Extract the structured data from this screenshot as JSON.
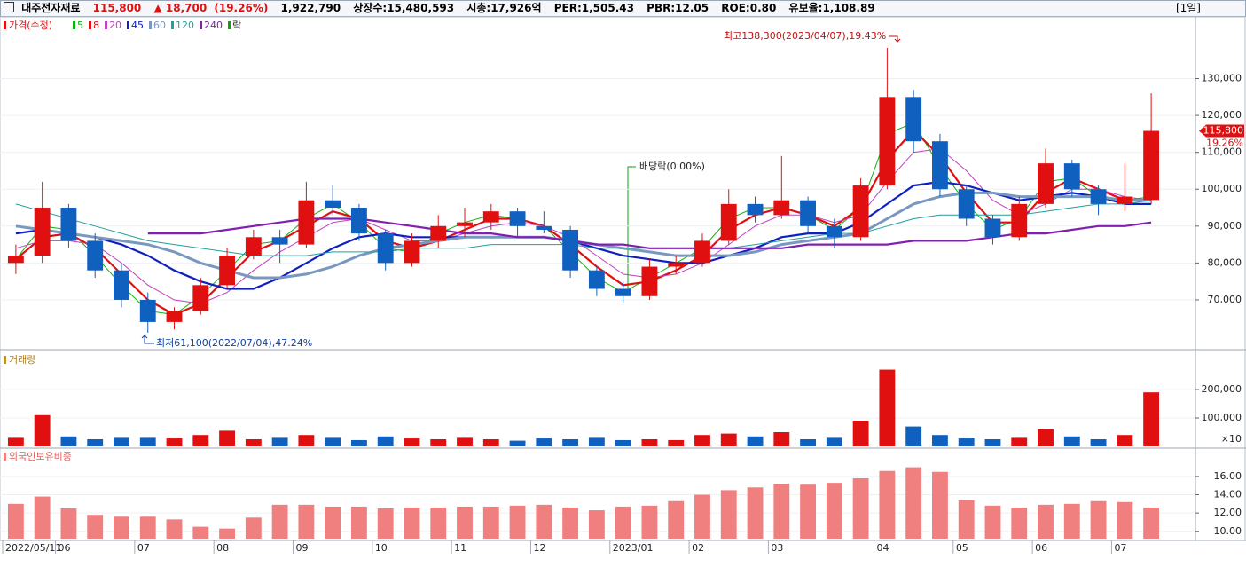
{
  "header": {
    "name": "대주전자재료",
    "price": "115,800",
    "change": "▲ 18,700",
    "change_pct": "(19.26%)",
    "volume": "1,922,790",
    "listed": "상장수:15,480,593",
    "market_cap": "시총:17,926억",
    "per": "PER:1,505.43",
    "pbr": "PBR:12.05",
    "roe": "ROE:0.80",
    "reserve": "유보율:1,108.89",
    "period": "[1일]"
  },
  "chart_data": [
    {
      "type": "candlestick",
      "name": "가격(수정)",
      "up_color": "#e01010",
      "down_color": "#1060c0",
      "open": [
        80000,
        82000,
        95000,
        86000,
        78000,
        70000,
        64000,
        67000,
        74000,
        82000,
        87000,
        85000,
        97000,
        95000,
        88000,
        80000,
        86000,
        90000,
        91000,
        94000,
        90000,
        89000,
        78000,
        73000,
        71000,
        79000,
        80000,
        86000,
        96000,
        93000,
        97000,
        90000,
        87000,
        101000,
        125000,
        113000,
        100000,
        92000,
        87000,
        96000,
        107000,
        100000,
        96000,
        97100
      ],
      "high": [
        85000,
        102000,
        96000,
        88000,
        80000,
        72000,
        68000,
        76000,
        84000,
        89000,
        89000,
        102000,
        101000,
        96000,
        89000,
        88000,
        93000,
        95000,
        96000,
        95000,
        94000,
        90000,
        79000,
        75000,
        81000,
        82000,
        88000,
        100000,
        98000,
        109000,
        98000,
        92000,
        103000,
        138300,
        127000,
        115000,
        101000,
        93000,
        98000,
        111000,
        108000,
        101000,
        107000,
        126000
      ],
      "low": [
        77000,
        80000,
        84000,
        76000,
        68000,
        61100,
        62000,
        66000,
        73000,
        81000,
        80000,
        84000,
        93000,
        86000,
        78000,
        79000,
        84000,
        87000,
        89000,
        87000,
        88000,
        76000,
        71000,
        69000,
        70000,
        77000,
        79000,
        85000,
        91000,
        92000,
        88000,
        84000,
        86000,
        100000,
        110000,
        98000,
        90000,
        85000,
        86000,
        95000,
        98000,
        93000,
        94000,
        96000
      ],
      "close": [
        82000,
        95000,
        86000,
        78000,
        70000,
        64000,
        67000,
        74000,
        82000,
        87000,
        85000,
        97000,
        95000,
        88000,
        80000,
        86000,
        90000,
        91000,
        94000,
        90000,
        89000,
        78000,
        73000,
        71000,
        79000,
        80000,
        86000,
        96000,
        93000,
        97000,
        90000,
        87000,
        101000,
        125000,
        113000,
        100000,
        92000,
        87000,
        96000,
        107000,
        100000,
        96000,
        98000,
        115800
      ],
      "series": [
        {
          "name": "5",
          "color": "#10b010",
          "width": 1,
          "values": [
            81000,
            90000,
            89000,
            82000,
            74000,
            67000,
            66000,
            71000,
            78000,
            85000,
            86000,
            92000,
            96000,
            91000,
            84000,
            83000,
            88000,
            91000,
            93000,
            92000,
            90000,
            83000,
            76000,
            72000,
            76000,
            80000,
            84000,
            92000,
            95000,
            95000,
            93000,
            89000,
            95000,
            115000,
            118000,
            106000,
            96000,
            89000,
            92000,
            102000,
            103000,
            98000,
            97000,
            98000
          ]
        },
        {
          "name": "8",
          "color": "#e01010",
          "width": 2.2,
          "values": [
            81000,
            87000,
            88000,
            84000,
            77000,
            70000,
            66000,
            69000,
            76000,
            83000,
            86000,
            90000,
            94000,
            92000,
            86000,
            84000,
            86000,
            89000,
            92000,
            92000,
            90000,
            85000,
            79000,
            74000,
            75000,
            78000,
            82000,
            89000,
            93000,
            95000,
            93000,
            90000,
            95000,
            108000,
            116000,
            109000,
            99000,
            91000,
            91000,
            99000,
            103000,
            100000,
            97000,
            97000
          ]
        },
        {
          "name": "20",
          "color": "#c040c0",
          "width": 1,
          "values": [
            84000,
            86000,
            86000,
            85000,
            80000,
            74000,
            70000,
            69000,
            72000,
            78000,
            83000,
            87000,
            91000,
            92000,
            89000,
            86000,
            86000,
            88000,
            90000,
            91000,
            90000,
            87000,
            82000,
            77000,
            76000,
            77000,
            80000,
            85000,
            90000,
            93000,
            93000,
            91000,
            93000,
            102000,
            110000,
            111000,
            105000,
            97000,
            93000,
            96000,
            100000,
            100000,
            98000,
            97000
          ]
        },
        {
          "name": "45",
          "color": "#1020c0",
          "width": 2.2,
          "values": [
            88000,
            89000,
            88000,
            87000,
            85000,
            82000,
            78000,
            75000,
            73000,
            73000,
            76000,
            80000,
            84000,
            87000,
            88000,
            87000,
            87000,
            87000,
            87000,
            87000,
            87000,
            86000,
            84000,
            82000,
            81000,
            80000,
            80000,
            82000,
            84000,
            87000,
            88000,
            88000,
            91000,
            96000,
            101000,
            102000,
            101000,
            99000,
            97000,
            98000,
            99000,
            98000,
            96000,
            96000
          ]
        },
        {
          "name": "60",
          "color": "#7898c0",
          "width": 3,
          "values": [
            90000,
            89000,
            88000,
            87000,
            86000,
            85000,
            83000,
            80000,
            78000,
            76000,
            76000,
            77000,
            79000,
            82000,
            84000,
            85000,
            86000,
            87000,
            87000,
            87000,
            87000,
            86000,
            85000,
            84000,
            83000,
            82000,
            82000,
            82000,
            83000,
            85000,
            86000,
            87000,
            88000,
            92000,
            96000,
            98000,
            99000,
            99000,
            98000,
            98000,
            98000,
            98000,
            97000,
            97000
          ]
        },
        {
          "name": "120",
          "color": "#20a0a0",
          "width": 1,
          "values": [
            96000,
            94000,
            92000,
            90000,
            88000,
            86000,
            85000,
            84000,
            83000,
            82000,
            82000,
            82000,
            83000,
            83000,
            83000,
            84000,
            84000,
            84000,
            85000,
            85000,
            85000,
            85000,
            84000,
            84000,
            84000,
            84000,
            84000,
            84000,
            85000,
            86000,
            87000,
            88000,
            88000,
            90000,
            92000,
            93000,
            93000,
            93000,
            93000,
            94000,
            95000,
            96000,
            96000,
            97000
          ]
        },
        {
          "name": "240",
          "color": "#8020b0",
          "width": 2.2,
          "values": [
            null,
            null,
            null,
            null,
            null,
            88000,
            88000,
            88000,
            89000,
            90000,
            91000,
            92000,
            92000,
            92000,
            91000,
            90000,
            89000,
            88000,
            88000,
            87000,
            87000,
            86000,
            85000,
            85000,
            84000,
            84000,
            84000,
            84000,
            84000,
            84000,
            85000,
            85000,
            85000,
            85000,
            86000,
            86000,
            86000,
            87000,
            88000,
            88000,
            89000,
            90000,
            90000,
            91000
          ]
        }
      ],
      "dividend_legend": "락",
      "ylim": [
        57000,
        146000
      ],
      "yticks": [
        {
          "value": 70000,
          "label": "70,000"
        },
        {
          "value": 80000,
          "label": "80,000"
        },
        {
          "value": 90000,
          "label": "90,000"
        },
        {
          "value": 100000,
          "label": "100,000"
        },
        {
          "value": 110000,
          "label": "110,000"
        },
        {
          "value": 120000,
          "label": "120,000"
        },
        {
          "value": 130000,
          "label": "130,000"
        }
      ],
      "last_price_label": "115,800",
      "last_change_label": "19.26%",
      "annotations": {
        "high": "최고138,300(2023/04/07),19.43%",
        "low": "최저61,100(2022/07/04),47.24%",
        "dividend": "배당락(0.00%)"
      }
    },
    {
      "type": "bar",
      "title": "거래량",
      "unit_label": "×10",
      "values": [
        30000,
        110000,
        35000,
        25000,
        30000,
        30000,
        28000,
        40000,
        55000,
        25000,
        30000,
        40000,
        30000,
        22000,
        35000,
        28000,
        25000,
        30000,
        25000,
        20000,
        28000,
        25000,
        30000,
        22000,
        25000,
        22000,
        40000,
        45000,
        35000,
        50000,
        25000,
        30000,
        90000,
        270000,
        70000,
        40000,
        28000,
        25000,
        30000,
        60000,
        35000,
        25000,
        40000,
        190000
      ],
      "ylim": [
        0,
        328000
      ],
      "yticks": [
        {
          "value": 100000,
          "label": "100,000"
        },
        {
          "value": 200000,
          "label": "200,000"
        }
      ]
    },
    {
      "type": "bar",
      "title": "외국인보유비중",
      "color": "#f08080",
      "categories": [
        "2022/05/11",
        null,
        "06",
        null,
        null,
        "07",
        null,
        null,
        "08",
        null,
        null,
        "09",
        null,
        null,
        "10",
        null,
        null,
        "11",
        null,
        null,
        "12",
        null,
        null,
        "2023/01",
        null,
        null,
        "02",
        null,
        null,
        "03",
        null,
        null,
        null,
        "04",
        null,
        null,
        "05",
        null,
        null,
        "06",
        null,
        null,
        "07",
        null
      ],
      "values": [
        13.0,
        13.8,
        12.5,
        11.8,
        11.6,
        11.6,
        11.3,
        10.5,
        10.3,
        11.5,
        12.9,
        12.9,
        12.7,
        12.7,
        12.5,
        12.6,
        12.6,
        12.7,
        12.7,
        12.8,
        12.9,
        12.6,
        12.3,
        12.7,
        12.8,
        13.3,
        14.0,
        14.5,
        14.8,
        15.2,
        15.1,
        15.3,
        15.8,
        16.6,
        17.0,
        16.5,
        13.4,
        12.8,
        12.6,
        12.9,
        13.0,
        13.3,
        13.2,
        12.6
      ],
      "ylim": [
        9.2,
        18.9
      ],
      "yticks": [
        {
          "value": 10,
          "label": "10.00"
        },
        {
          "value": 12,
          "label": "12.00"
        },
        {
          "value": 14,
          "label": "14.00"
        },
        {
          "value": 16,
          "label": "16.00"
        }
      ]
    }
  ]
}
